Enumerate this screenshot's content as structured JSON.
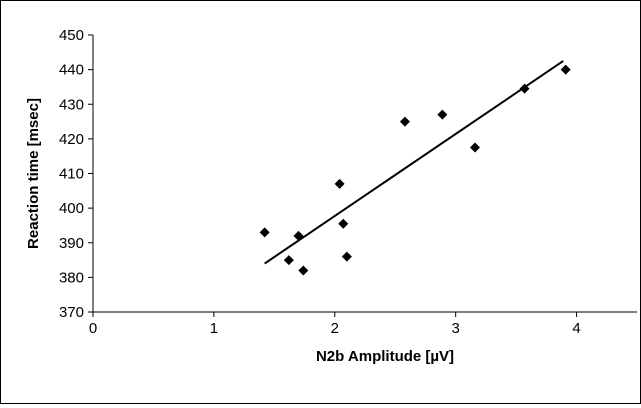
{
  "chart_data": {
    "type": "scatter",
    "title": "",
    "xlabel": "N2b Amplitude [µV]",
    "ylabel": "Reaction time [msec]",
    "xlim": [
      0,
      4.5
    ],
    "ylim": [
      370,
      450
    ],
    "x_ticks": [
      0,
      1,
      2,
      3,
      4
    ],
    "y_ticks": [
      370,
      380,
      390,
      400,
      410,
      420,
      430,
      440,
      450
    ],
    "grid": false,
    "legend": "none",
    "marker": "diamond",
    "marker_color": "#000000",
    "series": [
      {
        "points": [
          {
            "x": 1.42,
            "y": 393
          },
          {
            "x": 1.62,
            "y": 385
          },
          {
            "x": 1.7,
            "y": 392
          },
          {
            "x": 1.74,
            "y": 382
          },
          {
            "x": 2.04,
            "y": 407
          },
          {
            "x": 2.07,
            "y": 395.5
          },
          {
            "x": 2.1,
            "y": 386
          },
          {
            "x": 2.58,
            "y": 425
          },
          {
            "x": 2.89,
            "y": 427
          },
          {
            "x": 3.16,
            "y": 417.5
          },
          {
            "x": 3.57,
            "y": 434.5
          },
          {
            "x": 3.91,
            "y": 440
          }
        ]
      }
    ],
    "trendline": {
      "type": "linear",
      "from": {
        "x": 1.42,
        "y": 384
      },
      "to": {
        "x": 3.89,
        "y": 442.5
      }
    }
  }
}
